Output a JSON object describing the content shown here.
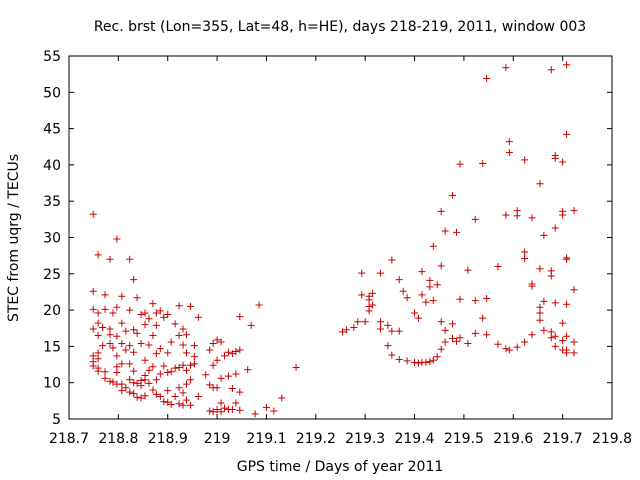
{
  "chart_data": {
    "type": "scatter",
    "title": "Rec. brst (Lon=355, Lat=48, h=HE), days 218-219, 2011, window 003",
    "xlabel": "GPS time / Days of year 2011",
    "ylabel": "STEC from uqrg / TECUs",
    "xlim": [
      218.7,
      219.8
    ],
    "ylim": [
      5,
      55
    ],
    "xticks": [
      "218.7",
      "218.8",
      "218.9",
      "219",
      "219.1",
      "219.2",
      "219.3",
      "219.4",
      "219.5",
      "219.6",
      "219.7",
      "219.8"
    ],
    "yticks": [
      "5",
      "10",
      "15",
      "20",
      "25",
      "30",
      "35",
      "40",
      "45",
      "50",
      "55"
    ],
    "grid": false,
    "legend": "none",
    "marker": "+",
    "color": "#cc0000",
    "points": [
      [
        218.749,
        33.2
      ],
      [
        218.749,
        22.6
      ],
      [
        218.749,
        20.1
      ],
      [
        218.749,
        17.4
      ],
      [
        218.749,
        13.7
      ],
      [
        218.749,
        12.9
      ],
      [
        218.749,
        12.3
      ],
      [
        218.759,
        27.6
      ],
      [
        218.759,
        19.6
      ],
      [
        218.759,
        18.2
      ],
      [
        218.759,
        16.5
      ],
      [
        218.759,
        14.1
      ],
      [
        218.759,
        13.3
      ],
      [
        218.759,
        12.0
      ],
      [
        218.759,
        11.6
      ],
      [
        218.768,
        17.6
      ],
      [
        218.768,
        15.1
      ],
      [
        218.773,
        22.1
      ],
      [
        218.773,
        20.1
      ],
      [
        218.773,
        11.5
      ],
      [
        218.773,
        10.6
      ],
      [
        218.783,
        27.0
      ],
      [
        218.783,
        17.4
      ],
      [
        218.783,
        16.6
      ],
      [
        218.783,
        15.4
      ],
      [
        218.783,
        10.2
      ],
      [
        218.789,
        19.6
      ],
      [
        218.789,
        14.8
      ],
      [
        218.789,
        10.1
      ],
      [
        218.797,
        29.8
      ],
      [
        218.797,
        20.4
      ],
      [
        218.797,
        16.4
      ],
      [
        218.797,
        13.7
      ],
      [
        218.797,
        12.2
      ],
      [
        218.797,
        11.4
      ],
      [
        218.797,
        9.8
      ],
      [
        218.807,
        21.9
      ],
      [
        218.807,
        18.2
      ],
      [
        218.807,
        15.4
      ],
      [
        218.807,
        12.6
      ],
      [
        218.807,
        9.8
      ],
      [
        218.807,
        8.9
      ],
      [
        218.815,
        17.1
      ],
      [
        218.815,
        14.5
      ],
      [
        218.815,
        9.3
      ],
      [
        218.823,
        27.0
      ],
      [
        218.823,
        20.0
      ],
      [
        218.823,
        15.1
      ],
      [
        218.823,
        12.6
      ],
      [
        218.823,
        10.4
      ],
      [
        218.823,
        8.7
      ],
      [
        218.831,
        24.2
      ],
      [
        218.831,
        17.3
      ],
      [
        218.831,
        14.2
      ],
      [
        218.831,
        11.6
      ],
      [
        218.831,
        10.0
      ],
      [
        218.831,
        8.5
      ],
      [
        218.838,
        21.7
      ],
      [
        218.838,
        16.8
      ],
      [
        218.838,
        9.9
      ],
      [
        218.838,
        8.0
      ],
      [
        218.846,
        19.4
      ],
      [
        218.846,
        15.4
      ],
      [
        218.846,
        10.3
      ],
      [
        218.846,
        9.6
      ],
      [
        218.846,
        7.9
      ],
      [
        218.854,
        19.6
      ],
      [
        218.854,
        18.0
      ],
      [
        218.854,
        13.1
      ],
      [
        218.854,
        11.0
      ],
      [
        218.854,
        10.4
      ],
      [
        218.854,
        8.2
      ],
      [
        218.862,
        18.8
      ],
      [
        218.862,
        15.2
      ],
      [
        218.862,
        11.7
      ],
      [
        218.862,
        9.9
      ],
      [
        218.87,
        20.9
      ],
      [
        218.87,
        16.5
      ],
      [
        218.87,
        12.2
      ],
      [
        218.87,
        9.0
      ],
      [
        218.877,
        19.6
      ],
      [
        218.877,
        17.9
      ],
      [
        218.877,
        14.0
      ],
      [
        218.877,
        10.4
      ],
      [
        218.877,
        8.4
      ],
      [
        218.885,
        19.9
      ],
      [
        218.885,
        14.7
      ],
      [
        218.885,
        11.2
      ],
      [
        218.885,
        8.1
      ],
      [
        218.892,
        19.0
      ],
      [
        218.892,
        12.3
      ],
      [
        218.892,
        7.4
      ],
      [
        218.9,
        19.4
      ],
      [
        218.9,
        14.1
      ],
      [
        218.9,
        11.4
      ],
      [
        218.9,
        8.9
      ],
      [
        218.9,
        7.3
      ],
      [
        218.907,
        15.6
      ],
      [
        218.907,
        11.5
      ],
      [
        218.907,
        7.0
      ],
      [
        218.915,
        18.1
      ],
      [
        218.915,
        12.0
      ],
      [
        218.915,
        8.1
      ],
      [
        218.923,
        20.6
      ],
      [
        218.923,
        16.5
      ],
      [
        218.923,
        12.1
      ],
      [
        218.923,
        9.3
      ],
      [
        218.923,
        7.1
      ],
      [
        218.931,
        17.4
      ],
      [
        218.931,
        15.2
      ],
      [
        218.931,
        12.4
      ],
      [
        218.931,
        8.6
      ],
      [
        218.931,
        6.9
      ],
      [
        218.938,
        16.6
      ],
      [
        218.938,
        14.1
      ],
      [
        218.938,
        11.7
      ],
      [
        218.938,
        9.8
      ],
      [
        218.938,
        7.6
      ],
      [
        218.946,
        20.5
      ],
      [
        218.946,
        12.4
      ],
      [
        218.946,
        10.4
      ],
      [
        218.946,
        6.9
      ],
      [
        218.954,
        15.1
      ],
      [
        218.954,
        13.6
      ],
      [
        218.954,
        12.6
      ],
      [
        218.962,
        19.0
      ],
      [
        218.962,
        8.1
      ],
      [
        218.977,
        11.1
      ],
      [
        218.985,
        14.5
      ],
      [
        218.985,
        9.7
      ],
      [
        218.985,
        6.1
      ],
      [
        218.992,
        15.4
      ],
      [
        218.992,
        12.4
      ],
      [
        218.992,
        9.3
      ],
      [
        218.992,
        6.0
      ],
      [
        219.0,
        15.9
      ],
      [
        219.0,
        13.1
      ],
      [
        219.0,
        9.3
      ],
      [
        219.0,
        6.3
      ],
      [
        219.008,
        15.6
      ],
      [
        219.008,
        10.6
      ],
      [
        219.008,
        7.2
      ],
      [
        219.008,
        6.0
      ],
      [
        219.015,
        13.7
      ],
      [
        219.015,
        6.5
      ],
      [
        219.023,
        14.2
      ],
      [
        219.023,
        10.9
      ],
      [
        219.023,
        6.3
      ],
      [
        219.031,
        14.0
      ],
      [
        219.031,
        9.2
      ],
      [
        219.031,
        6.3
      ],
      [
        219.038,
        14.3
      ],
      [
        219.038,
        11.2
      ],
      [
        219.038,
        7.2
      ],
      [
        219.046,
        19.1
      ],
      [
        219.046,
        14.5
      ],
      [
        219.046,
        8.7
      ],
      [
        219.046,
        6.2
      ],
      [
        219.062,
        11.8
      ],
      [
        219.069,
        17.9
      ],
      [
        219.077,
        5.7
      ],
      [
        219.085,
        20.7
      ],
      [
        219.1,
        6.6
      ],
      [
        219.115,
        6.1
      ],
      [
        219.131,
        7.9
      ],
      [
        219.16,
        12.1
      ],
      [
        219.254,
        17.0
      ],
      [
        219.262,
        17.3
      ],
      [
        219.277,
        17.6
      ],
      [
        219.285,
        18.4
      ],
      [
        219.293,
        25.1
      ],
      [
        219.293,
        22.1
      ],
      [
        219.3,
        18.4
      ],
      [
        219.308,
        21.9
      ],
      [
        219.308,
        21.4
      ],
      [
        219.308,
        20.5
      ],
      [
        219.308,
        19.9
      ],
      [
        219.315,
        22.3
      ],
      [
        219.315,
        20.7
      ],
      [
        219.331,
        25.1
      ],
      [
        219.331,
        18.4
      ],
      [
        219.331,
        17.4
      ],
      [
        219.346,
        17.9
      ],
      [
        219.346,
        15.1
      ],
      [
        219.354,
        26.9
      ],
      [
        219.354,
        13.8
      ],
      [
        219.354,
        17.1
      ],
      [
        219.369,
        24.2
      ],
      [
        219.369,
        13.2
      ],
      [
        219.369,
        17.1
      ],
      [
        219.377,
        22.6
      ],
      [
        219.385,
        21.7
      ],
      [
        219.385,
        13.0
      ],
      [
        219.4,
        19.6
      ],
      [
        219.4,
        12.8
      ],
      [
        219.408,
        18.9
      ],
      [
        219.408,
        12.7
      ],
      [
        219.415,
        25.3
      ],
      [
        219.415,
        22.1
      ],
      [
        219.415,
        12.8
      ],
      [
        219.423,
        21.1
      ],
      [
        219.423,
        12.8
      ],
      [
        219.431,
        24.1
      ],
      [
        219.431,
        23.2
      ],
      [
        219.431,
        12.9
      ],
      [
        219.438,
        28.8
      ],
      [
        219.438,
        21.3
      ],
      [
        219.438,
        13.1
      ],
      [
        219.446,
        23.5
      ],
      [
        219.446,
        13.6
      ],
      [
        219.454,
        33.6
      ],
      [
        219.454,
        26.1
      ],
      [
        219.454,
        18.4
      ],
      [
        219.454,
        14.6
      ],
      [
        219.462,
        30.9
      ],
      [
        219.462,
        17.2
      ],
      [
        219.462,
        15.6
      ],
      [
        219.477,
        35.8
      ],
      [
        219.477,
        18.1
      ],
      [
        219.477,
        16.1
      ],
      [
        219.485,
        30.7
      ],
      [
        219.485,
        15.7
      ],
      [
        219.492,
        40.1
      ],
      [
        219.492,
        21.5
      ],
      [
        219.492,
        16.2
      ],
      [
        219.508,
        25.5
      ],
      [
        219.508,
        15.4
      ],
      [
        219.523,
        32.5
      ],
      [
        219.523,
        21.3
      ],
      [
        219.523,
        16.8
      ],
      [
        219.538,
        40.2
      ],
      [
        219.538,
        18.9
      ],
      [
        219.546,
        51.9
      ],
      [
        219.546,
        21.6
      ],
      [
        219.546,
        16.6
      ],
      [
        219.569,
        26.0
      ],
      [
        219.569,
        15.3
      ],
      [
        219.585,
        53.4
      ],
      [
        219.585,
        33.1
      ],
      [
        219.585,
        14.7
      ],
      [
        219.592,
        43.2
      ],
      [
        219.592,
        41.7
      ],
      [
        219.592,
        14.5
      ],
      [
        219.608,
        33.7
      ],
      [
        219.608,
        33.0
      ],
      [
        219.608,
        14.9
      ],
      [
        219.623,
        40.7
      ],
      [
        219.623,
        28.0
      ],
      [
        219.623,
        27.1
      ],
      [
        219.623,
        15.6
      ],
      [
        219.638,
        32.7
      ],
      [
        219.638,
        23.6
      ],
      [
        219.638,
        23.3
      ],
      [
        219.638,
        16.6
      ],
      [
        219.654,
        37.4
      ],
      [
        219.654,
        25.7
      ],
      [
        219.654,
        20.4
      ],
      [
        219.654,
        19.6
      ],
      [
        219.654,
        18.6
      ],
      [
        219.662,
        30.3
      ],
      [
        219.662,
        21.2
      ],
      [
        219.662,
        17.2
      ],
      [
        219.677,
        53.1
      ],
      [
        219.677,
        25.4
      ],
      [
        219.677,
        24.7
      ],
      [
        219.677,
        17.0
      ],
      [
        219.677,
        16.2
      ],
      [
        219.685,
        41.3
      ],
      [
        219.685,
        40.9
      ],
      [
        219.685,
        31.3
      ],
      [
        219.685,
        21.0
      ],
      [
        219.685,
        16.4
      ],
      [
        219.685,
        15.0
      ],
      [
        219.7,
        40.4
      ],
      [
        219.7,
        33.6
      ],
      [
        219.7,
        33.1
      ],
      [
        219.7,
        18.2
      ],
      [
        219.7,
        15.8
      ],
      [
        219.7,
        14.5
      ],
      [
        219.708,
        53.8
      ],
      [
        219.708,
        44.2
      ],
      [
        219.708,
        27.2
      ],
      [
        219.708,
        27.0
      ],
      [
        219.708,
        20.8
      ],
      [
        219.708,
        16.4
      ],
      [
        219.708,
        14.5
      ],
      [
        219.708,
        14.1
      ],
      [
        219.723,
        33.7
      ],
      [
        219.723,
        22.8
      ],
      [
        219.723,
        15.6
      ],
      [
        219.723,
        14.1
      ]
    ]
  }
}
